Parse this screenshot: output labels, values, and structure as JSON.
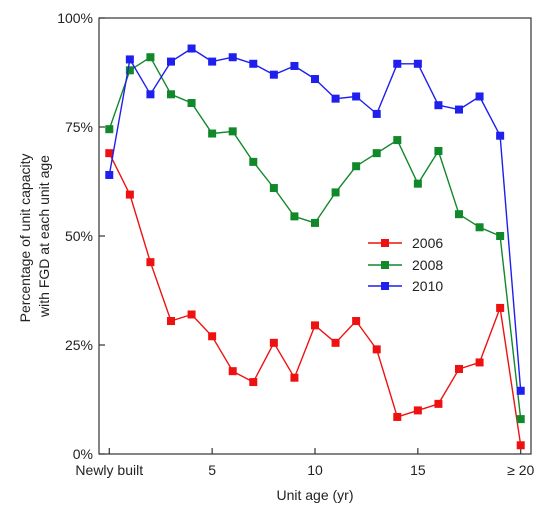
{
  "chart_data": {
    "type": "line",
    "title": "",
    "xlabel": "Unit age (yr)",
    "ylabel_lines": [
      "Percentage of unit capacity",
      "with FGD at each unit age"
    ],
    "xlim": [
      -0.5,
      20.5
    ],
    "ylim": [
      0,
      100
    ],
    "x": [
      0,
      1,
      2,
      3,
      4,
      5,
      6,
      7,
      8,
      9,
      10,
      11,
      12,
      13,
      14,
      15,
      16,
      17,
      18,
      19,
      20
    ],
    "x_ticks": [
      {
        "value": 0,
        "label": "Newly built"
      },
      {
        "value": 5,
        "label": "5"
      },
      {
        "value": 10,
        "label": "10"
      },
      {
        "value": 15,
        "label": "15"
      },
      {
        "value": 20,
        "label": "≥ 20"
      }
    ],
    "y_ticks": [
      {
        "value": 0,
        "label": "0%"
      },
      {
        "value": 25,
        "label": "25%"
      },
      {
        "value": 50,
        "label": "50%"
      },
      {
        "value": 75,
        "label": "75%"
      },
      {
        "value": 100,
        "label": "100%"
      }
    ],
    "grid": false,
    "legend_position": "center-right",
    "series": [
      {
        "name": "2006",
        "color": "#ee1111",
        "values": [
          69,
          59.5,
          44,
          30.5,
          32,
          27,
          19,
          16.5,
          25.5,
          17.5,
          29.5,
          25.5,
          30.5,
          24,
          8.5,
          10,
          11.5,
          19.5,
          21,
          33.5,
          2
        ]
      },
      {
        "name": "2008",
        "color": "#11882a",
        "values": [
          74.5,
          88,
          91,
          82.5,
          80.5,
          73.5,
          74,
          67,
          61,
          54.5,
          53,
          60,
          66,
          69,
          72,
          62,
          69.5,
          55,
          52,
          50,
          8
        ]
      },
      {
        "name": "2010",
        "color": "#1f1fee",
        "values": [
          64,
          90.5,
          82.5,
          90,
          93,
          90,
          91,
          89.5,
          87,
          89,
          86,
          81.5,
          82,
          78,
          89.5,
          89.5,
          80,
          79,
          82,
          73,
          14.5
        ]
      }
    ]
  }
}
